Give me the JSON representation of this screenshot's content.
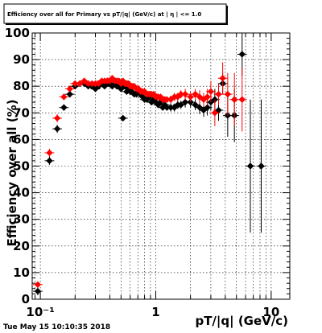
{
  "chart_data": {
    "type": "scatter",
    "title": "Efficiency over all for Primary vs pT/|q| (GeV/c) at | η | <= 1.0",
    "xlabel": "pT/|q| (GeV/c)",
    "ylabel": "Efficiency over all (%)",
    "x_scale": "log",
    "xlim": [
      0.085,
      14.5
    ],
    "ylim": [
      0,
      100
    ],
    "x_tick_labels": [
      {
        "value": 0.1,
        "label": "10⁻¹"
      },
      {
        "value": 1,
        "label": "1"
      },
      {
        "value": 10,
        "label": "10"
      }
    ],
    "y_ticks": [
      0,
      10,
      20,
      30,
      40,
      50,
      60,
      70,
      80,
      90,
      100
    ],
    "grid": true,
    "series": [
      {
        "color": "#000000",
        "marker": "diamond",
        "x": [
          0.095,
          0.12,
          0.14,
          0.16,
          0.18,
          0.2,
          0.22,
          0.24,
          0.26,
          0.28,
          0.3,
          0.32,
          0.34,
          0.36,
          0.38,
          0.4,
          0.42,
          0.44,
          0.46,
          0.48,
          0.5,
          0.52,
          0.54,
          0.56,
          0.58,
          0.6,
          0.62,
          0.65,
          0.68,
          0.71,
          0.74,
          0.77,
          0.8,
          0.84,
          0.88,
          0.92,
          0.96,
          1.0,
          1.05,
          1.1,
          1.15,
          1.2,
          1.25,
          1.35,
          1.45,
          1.55,
          1.65,
          1.8,
          2.0,
          2.2,
          2.4,
          2.6,
          2.8,
          3.0,
          3.25,
          3.5,
          3.8,
          4.2,
          4.8,
          5.6,
          6.6,
          8.2
        ],
        "y": [
          3,
          52,
          64,
          72,
          77,
          80,
          81,
          81,
          80,
          80,
          79,
          80,
          81,
          80,
          81,
          81,
          80,
          81,
          80,
          80,
          79,
          68,
          80,
          78,
          79,
          78,
          78,
          77,
          77,
          78,
          77,
          76,
          75,
          75,
          76,
          74,
          75,
          74,
          73,
          74,
          72,
          73,
          72,
          72,
          72,
          73,
          73,
          74,
          74,
          73,
          72,
          71,
          72,
          74,
          75,
          71,
          81,
          69,
          69,
          92,
          50,
          50
        ],
        "yerr": [
          1.5,
          1.5,
          1.5,
          1.2,
          1.2,
          1,
          1,
          1,
          1,
          1,
          1,
          1,
          1,
          1,
          1,
          1,
          1,
          1,
          1,
          1,
          1,
          1,
          1,
          1,
          1,
          1,
          1,
          1,
          1,
          1,
          1,
          1,
          1,
          1,
          1,
          1,
          1,
          1,
          1,
          1,
          1,
          1,
          1,
          1.5,
          1.5,
          1.5,
          1.5,
          2,
          2,
          2,
          2.5,
          2.5,
          3,
          3,
          4,
          4,
          4,
          8,
          10,
          8,
          25,
          25
        ]
      },
      {
        "color": "#ff0000",
        "marker": "diamond",
        "x": [
          0.095,
          0.12,
          0.14,
          0.16,
          0.18,
          0.2,
          0.22,
          0.24,
          0.26,
          0.28,
          0.3,
          0.32,
          0.34,
          0.36,
          0.38,
          0.4,
          0.42,
          0.44,
          0.46,
          0.48,
          0.5,
          0.52,
          0.54,
          0.56,
          0.58,
          0.6,
          0.62,
          0.65,
          0.68,
          0.71,
          0.74,
          0.77,
          0.8,
          0.84,
          0.88,
          0.92,
          0.96,
          1.0,
          1.05,
          1.1,
          1.15,
          1.2,
          1.25,
          1.35,
          1.45,
          1.55,
          1.65,
          1.8,
          2.0,
          2.2,
          2.4,
          2.6,
          2.8,
          3.0,
          3.25,
          3.5,
          3.8,
          4.2,
          4.8,
          5.6
        ],
        "y": [
          5.5,
          55,
          68,
          76,
          79,
          81,
          81,
          82,
          81,
          81,
          81,
          81,
          82,
          82,
          82,
          82,
          83,
          82,
          82,
          82,
          81,
          82,
          81,
          81,
          81,
          80,
          80,
          80,
          79,
          79,
          78,
          78,
          78,
          77,
          77,
          77,
          77,
          76,
          76,
          76,
          75,
          75,
          75,
          75,
          76,
          76,
          77,
          77,
          76,
          77,
          76,
          75,
          76,
          78,
          70,
          77,
          83,
          77,
          75,
          75
        ],
        "yerr": [
          1,
          1.5,
          1.5,
          1.2,
          1.2,
          1,
          1,
          1,
          1,
          1,
          1,
          1,
          1,
          1,
          1,
          1,
          1,
          1,
          1,
          1,
          1,
          1,
          1,
          1,
          1,
          1,
          1,
          1,
          1,
          1,
          1,
          1,
          1,
          1,
          1,
          1,
          1,
          1,
          1,
          1,
          1,
          1,
          1,
          1.5,
          1.5,
          1.5,
          1.5,
          2,
          2,
          2,
          2.5,
          2.5,
          3,
          4,
          5,
          4,
          6,
          8,
          10,
          12
        ]
      }
    ]
  },
  "footer": {
    "timestamp": "Tue May 15 10:10:35 2018"
  }
}
